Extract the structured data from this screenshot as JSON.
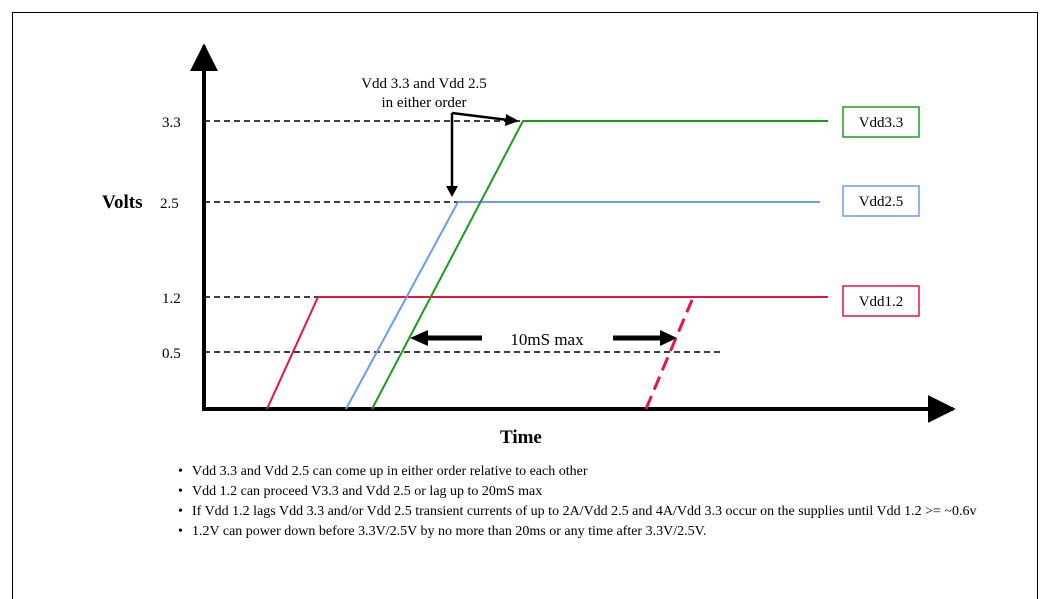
{
  "diagram": {
    "y_axis_label": "Volts",
    "x_axis_label": "Time",
    "y_ticks": [
      "3.3",
      "2.5",
      "1.2",
      "0.5"
    ],
    "annotation": "Vdd 3.3 and Vdd 2.5\nin either order",
    "annotation_line1": "Vdd 3.3 and Vdd 2.5",
    "annotation_line2": "in either order",
    "max_label": "10mS max",
    "legend": [
      {
        "label": "Vdd3.3",
        "color": "#1a9e1a"
      },
      {
        "label": "Vdd2.5",
        "color": "#6c9cf0"
      },
      {
        "label": "Vdd1.2",
        "color": "#e8143c"
      }
    ]
  },
  "bullets": [
    "Vdd 3.3 and Vdd 2.5 can come up in either order relative to each other",
    "Vdd 1.2 can proceed V3.3 and Vdd 2.5 or lag up to 20mS max",
    "If Vdd 1.2 lags Vdd 3.3 and/or Vdd 2.5 transient currents of up to 2A/Vdd 2.5 and 4A/Vdd 3.3 occur on the supplies until Vdd 1.2 >= ~0.6v",
    "1.2V can power down before 3.3V/2.5V by no more than 20ms or any time after 3.3V/2.5V."
  ]
}
